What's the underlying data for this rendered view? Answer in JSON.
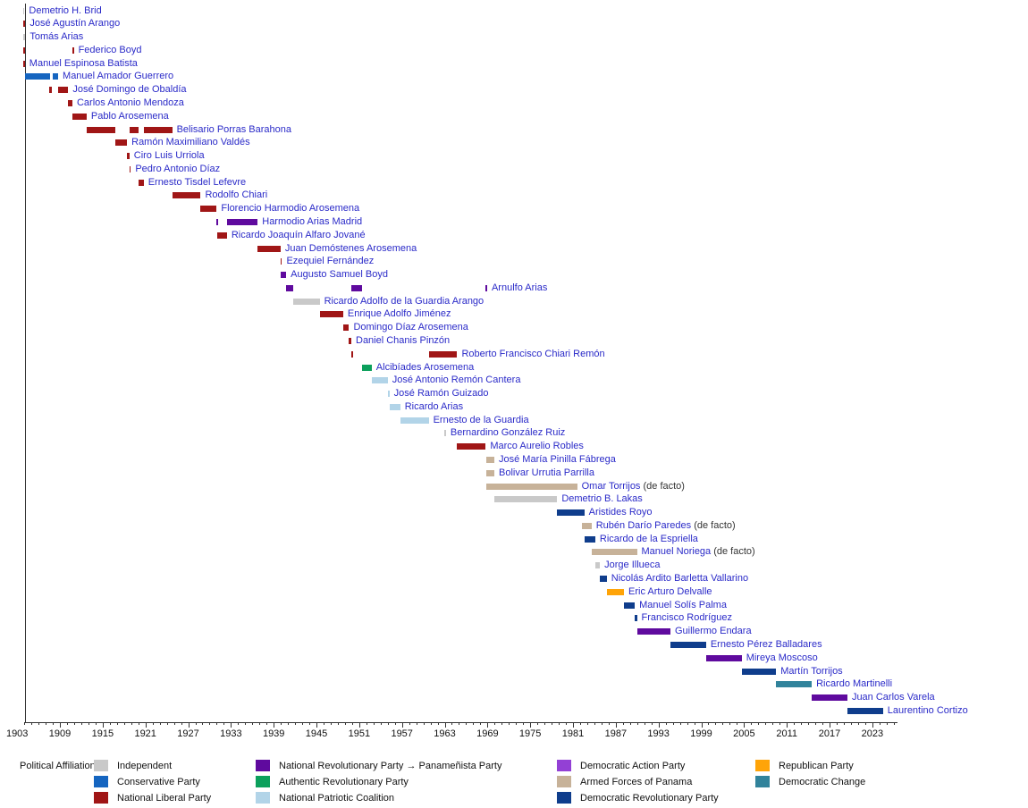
{
  "chart_data": {
    "type": "timeline",
    "description": "Timeline of Panamanian heads of state colored by political affiliation",
    "x_axis": {
      "start_year": 1903,
      "end_year": 2026,
      "tick_label_years": [
        1903,
        1909,
        1915,
        1921,
        1927,
        1933,
        1939,
        1945,
        1951,
        1957,
        1963,
        1969,
        1975,
        1981,
        1987,
        1993,
        1999,
        2005,
        2011,
        2017,
        2023
      ],
      "minor_tick_interval": 1,
      "grid": false
    },
    "parties": {
      "ind": {
        "label": "Independent",
        "color": "#c9c9c9"
      },
      "con": {
        "label": "Conservative Party",
        "color": "#1565c0"
      },
      "pln": {
        "label": "National Liberal Party",
        "color": "#a01616"
      },
      "pnr": {
        "label": "National Revolutionary Party → Panameñista Party",
        "color": "#5f0a9e"
      },
      "pra": {
        "label": "Authentic Revolutionary Party",
        "color": "#0ca05c"
      },
      "cpn": {
        "label": "National Patriotic Coalition",
        "color": "#b2d4e8"
      },
      "pad": {
        "label": "Democratic Action Party",
        "color": "#9340d5"
      },
      "fap": {
        "label": "Armed Forces of Panama",
        "color": "#c7b299"
      },
      "prd": {
        "label": "Democratic Revolutionary Party",
        "color": "#0f3d8c"
      },
      "rep": {
        "label": "Republican Party",
        "color": "#ffa408"
      },
      "cd": {
        "label": "Democratic Change",
        "color": "#31839b"
      }
    },
    "presidents": [
      {
        "name": "Demetrio H. Brid",
        "party": "ind",
        "terms": [
          [
            1903.83,
            1903.88
          ]
        ]
      },
      {
        "name": "José Agustín Arango",
        "party": "pln",
        "terms": [
          [
            1903.84,
            1904.15
          ]
        ]
      },
      {
        "name": "Tomás Arias",
        "party": "ind",
        "terms": [
          [
            1903.84,
            1904.15
          ]
        ]
      },
      {
        "name": "Federico Boyd",
        "party": "pln",
        "terms": [
          [
            1903.84,
            1904.15
          ],
          [
            1910.75,
            1910.79
          ]
        ]
      },
      {
        "name": "Manuel Espinosa Batista",
        "party": "pln",
        "terms": [
          [
            1903.84,
            1904.08
          ]
        ]
      },
      {
        "name": "Manuel Amador Guerrero",
        "party": "con",
        "terms": [
          [
            1904.15,
            1907.6
          ],
          [
            1908.0,
            1908.75
          ]
        ]
      },
      {
        "name": "José Domingo de Obaldía",
        "party": "pln",
        "terms": [
          [
            1907.45,
            1907.93
          ],
          [
            1908.75,
            1910.17
          ]
        ]
      },
      {
        "name": "Carlos Antonio Mendoza",
        "party": "pln",
        "terms": [
          [
            1910.17,
            1910.75
          ]
        ]
      },
      {
        "name": "Pablo Arosemena",
        "party": "pln",
        "terms": [
          [
            1910.75,
            1912.75
          ]
        ]
      },
      {
        "name": "Belisario Porras Barahona",
        "party": "pln",
        "terms": [
          [
            1912.75,
            1916.75
          ],
          [
            1918.78,
            1920.08
          ],
          [
            1920.75,
            1924.75
          ]
        ]
      },
      {
        "name": "Ramón Maximiliano Valdés",
        "party": "pln",
        "terms": [
          [
            1916.75,
            1918.42
          ]
        ]
      },
      {
        "name": "Ciro Luis Urriola",
        "party": "pln",
        "terms": [
          [
            1918.42,
            1918.75
          ]
        ]
      },
      {
        "name": "Pedro Antonio Díaz",
        "party": "pln",
        "terms": [
          [
            1918.75,
            1918.79
          ]
        ]
      },
      {
        "name": "Ernesto Tisdel Lefevre",
        "party": "pln",
        "terms": [
          [
            1920.08,
            1920.75
          ]
        ]
      },
      {
        "name": "Rodolfo Chiari",
        "party": "pln",
        "terms": [
          [
            1924.75,
            1928.75
          ]
        ]
      },
      {
        "name": "Florencio Harmodio Arosemena",
        "party": "pln",
        "terms": [
          [
            1928.75,
            1931.0
          ]
        ]
      },
      {
        "name": "Harmodio Arias Madrid",
        "party": "pnr",
        "terms": [
          [
            1931.0,
            1931.05
          ],
          [
            1932.43,
            1936.75
          ]
        ]
      },
      {
        "name": "Ricardo Joaquín Alfaro Jované",
        "party": "pln",
        "terms": [
          [
            1931.05,
            1932.43
          ]
        ]
      },
      {
        "name": "Juan Demóstenes Arosemena",
        "party": "pln",
        "terms": [
          [
            1936.75,
            1939.96
          ]
        ]
      },
      {
        "name": "Ezequiel Fernández",
        "party": "pln",
        "terms": [
          [
            1939.96,
            1940.0
          ]
        ]
      },
      {
        "name": "Augusto Samuel Boyd",
        "party": "pnr",
        "terms": [
          [
            1940.0,
            1940.75
          ]
        ]
      },
      {
        "name": "Arnulfo Arias",
        "party": "pnr",
        "terms": [
          [
            1940.75,
            1941.77
          ],
          [
            1949.9,
            1951.35
          ],
          [
            1968.75,
            1968.79
          ]
        ]
      },
      {
        "name": "Ricardo Adolfo de la Guardia Arango",
        "party": "ind",
        "terms": [
          [
            1941.77,
            1945.45
          ]
        ]
      },
      {
        "name": "Enrique Adolfo Jiménez",
        "party": "pln",
        "terms": [
          [
            1945.45,
            1948.75
          ]
        ]
      },
      {
        "name": "Domingo Díaz Arosemena",
        "party": "pln",
        "terms": [
          [
            1948.75,
            1949.57
          ]
        ]
      },
      {
        "name": "Daniel Chanis Pinzón",
        "party": "pln",
        "terms": [
          [
            1949.57,
            1949.89
          ]
        ]
      },
      {
        "name": "Roberto Francisco Chiari Remón",
        "party": "pln",
        "terms": [
          [
            1949.89,
            1949.93
          ],
          [
            1960.75,
            1964.75
          ]
        ]
      },
      {
        "name": "Alcibíades Arosemena",
        "party": "pra",
        "terms": [
          [
            1951.35,
            1952.75
          ]
        ]
      },
      {
        "name": "José Antonio Remón Cantera",
        "party": "cpn",
        "terms": [
          [
            1952.75,
            1955.0
          ]
        ]
      },
      {
        "name": "José Ramón Guizado",
        "party": "cpn",
        "terms": [
          [
            1955.0,
            1955.24
          ]
        ]
      },
      {
        "name": "Ricardo Arias",
        "party": "cpn",
        "terms": [
          [
            1955.24,
            1956.75
          ]
        ]
      },
      {
        "name": "Ernesto de la Guardia",
        "party": "cpn",
        "terms": [
          [
            1956.75,
            1960.75
          ]
        ]
      },
      {
        "name": "Bernardino González Ruiz",
        "party": "ind",
        "terms": [
          [
            1962.97,
            1963.02
          ]
        ]
      },
      {
        "name": "Marco Aurelio Robles",
        "party": "pln",
        "terms": [
          [
            1964.75,
            1968.75
          ]
        ]
      },
      {
        "name": "José María Pinilla Fábrega",
        "party": "fap",
        "terms": [
          [
            1968.78,
            1969.96
          ]
        ]
      },
      {
        "name": "Bolivar Urrutia Parrilla",
        "party": "fap",
        "terms": [
          [
            1968.78,
            1969.96
          ]
        ]
      },
      {
        "name": "Omar Torrijos",
        "suffix": "(de facto)",
        "party": "fap",
        "terms": [
          [
            1968.78,
            1981.58
          ]
        ]
      },
      {
        "name": "Demetrio B. Lakas",
        "party": "ind",
        "terms": [
          [
            1969.96,
            1978.78
          ]
        ]
      },
      {
        "name": "Aristides Royo",
        "party": "prd",
        "terms": [
          [
            1978.78,
            1982.58
          ]
        ]
      },
      {
        "name": "Rubén Darío Paredes",
        "suffix": "(de facto)",
        "party": "fap",
        "terms": [
          [
            1982.25,
            1983.6
          ]
        ]
      },
      {
        "name": "Ricardo de la Espriella",
        "party": "prd",
        "terms": [
          [
            1982.58,
            1984.12
          ]
        ]
      },
      {
        "name": "Manuel Noriega",
        "suffix": "(de facto)",
        "party": "fap",
        "terms": [
          [
            1983.6,
            1989.97
          ]
        ]
      },
      {
        "name": "Jorge Illueca",
        "party": "ind",
        "terms": [
          [
            1984.12,
            1984.78
          ]
        ]
      },
      {
        "name": "Nicolás Ardito Barletta Vallarino",
        "party": "prd",
        "terms": [
          [
            1984.78,
            1985.74
          ]
        ]
      },
      {
        "name": "Eric Arturo Delvalle",
        "party": "rep",
        "terms": [
          [
            1985.74,
            1988.15
          ]
        ]
      },
      {
        "name": "Manuel Solís Palma",
        "party": "prd",
        "terms": [
          [
            1988.15,
            1989.67
          ]
        ]
      },
      {
        "name": "Francisco Rodríguez",
        "party": "prd",
        "terms": [
          [
            1989.67,
            1989.97
          ]
        ]
      },
      {
        "name": "Guillermo Endara",
        "party": "pnr",
        "terms": [
          [
            1989.97,
            1994.67
          ]
        ]
      },
      {
        "name": "Ernesto Pérez Balladares",
        "party": "prd",
        "terms": [
          [
            1994.67,
            1999.67
          ]
        ]
      },
      {
        "name": "Mireya Moscoso",
        "party": "pnr",
        "terms": [
          [
            1999.67,
            2004.67
          ]
        ]
      },
      {
        "name": "Martín Torrijos",
        "party": "prd",
        "terms": [
          [
            2004.67,
            2009.5
          ]
        ]
      },
      {
        "name": "Ricardo Martinelli",
        "party": "cd",
        "terms": [
          [
            2009.5,
            2014.5
          ]
        ]
      },
      {
        "name": "Juan Carlos Varela",
        "party": "pnr",
        "terms": [
          [
            2014.5,
            2019.5
          ]
        ]
      },
      {
        "name": "Laurentino Cortizo",
        "party": "prd",
        "terms": [
          [
            2019.5,
            2024.5
          ]
        ]
      }
    ],
    "legend_position": "bottom"
  },
  "legend": {
    "title": "Political Affiliation:",
    "items": [
      {
        "party": "ind",
        "col": 0,
        "row": 0
      },
      {
        "party": "con",
        "col": 0,
        "row": 1
      },
      {
        "party": "pln",
        "col": 0,
        "row": 2
      },
      {
        "party": "pnr",
        "col": 1,
        "row": 0
      },
      {
        "party": "pra",
        "col": 1,
        "row": 1
      },
      {
        "party": "cpn",
        "col": 1,
        "row": 2
      },
      {
        "party": "pad",
        "col": 2,
        "row": 0
      },
      {
        "party": "fap",
        "col": 2,
        "row": 1
      },
      {
        "party": "prd",
        "col": 2,
        "row": 2
      },
      {
        "party": "rep",
        "col": 3,
        "row": 0
      },
      {
        "party": "cd",
        "col": 3,
        "row": 1
      }
    ]
  }
}
